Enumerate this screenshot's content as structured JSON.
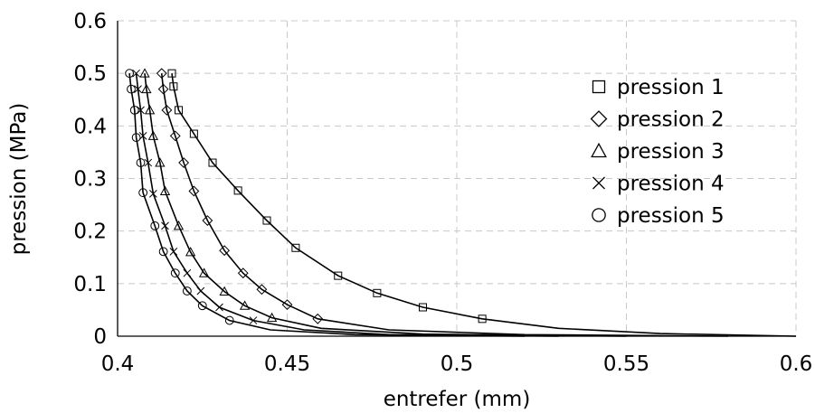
{
  "chart_data": {
    "type": "line",
    "title": "",
    "xlabel": "entrefer (mm)",
    "ylabel": "pression (MPa)",
    "xlim": [
      0.4,
      0.6
    ],
    "ylim": [
      0,
      0.6
    ],
    "xticks": [
      "0.4",
      "0.45",
      "0.5",
      "0.55",
      "0.6"
    ],
    "yticks": [
      "0",
      "0.1",
      "0.2",
      "0.3",
      "0.4",
      "0.5",
      "0.6"
    ],
    "grid": true,
    "legend_position": "right",
    "series": [
      {
        "name": "pression 1",
        "marker": "square",
        "x": [
          0.416,
          0.4165,
          0.418,
          0.4225,
          0.428,
          0.4355,
          0.444,
          0.4525,
          0.465,
          0.4765,
          0.49,
          0.5075,
          0.53,
          0.56,
          0.6
        ],
        "y": [
          0.5,
          0.475,
          0.43,
          0.385,
          0.33,
          0.277,
          0.22,
          0.168,
          0.115,
          0.082,
          0.055,
          0.033,
          0.015,
          0.005,
          0.0
        ]
      },
      {
        "name": "pression 2",
        "marker": "diamond",
        "x": [
          0.413,
          0.4135,
          0.4145,
          0.417,
          0.4195,
          0.4225,
          0.4265,
          0.4315,
          0.437,
          0.4425,
          0.45,
          0.459,
          0.48,
          0.52,
          0.58
        ],
        "y": [
          0.5,
          0.47,
          0.43,
          0.381,
          0.33,
          0.276,
          0.22,
          0.163,
          0.12,
          0.089,
          0.06,
          0.033,
          0.012,
          0.003,
          0.0
        ]
      },
      {
        "name": "pression 3",
        "marker": "triangle",
        "x": [
          0.408,
          0.4085,
          0.4095,
          0.4105,
          0.4125,
          0.414,
          0.418,
          0.4215,
          0.4255,
          0.4315,
          0.4375,
          0.4455,
          0.46,
          0.49,
          0.55
        ],
        "y": [
          0.5,
          0.47,
          0.43,
          0.381,
          0.33,
          0.276,
          0.21,
          0.16,
          0.12,
          0.085,
          0.058,
          0.035,
          0.015,
          0.004,
          0.0
        ]
      },
      {
        "name": "pression 4",
        "marker": "cross",
        "x": [
          0.4055,
          0.406,
          0.4068,
          0.4075,
          0.409,
          0.4105,
          0.414,
          0.4165,
          0.4205,
          0.4245,
          0.43,
          0.44,
          0.455,
          0.48,
          0.53
        ],
        "y": [
          0.5,
          0.47,
          0.43,
          0.381,
          0.33,
          0.271,
          0.21,
          0.161,
          0.12,
          0.086,
          0.055,
          0.03,
          0.012,
          0.003,
          0.0
        ]
      },
      {
        "name": "pression 5",
        "marker": "circle",
        "x": [
          0.4035,
          0.404,
          0.405,
          0.4055,
          0.4068,
          0.4075,
          0.411,
          0.4135,
          0.417,
          0.4205,
          0.425,
          0.433,
          0.445,
          0.47,
          0.52
        ],
        "y": [
          0.5,
          0.47,
          0.43,
          0.378,
          0.33,
          0.273,
          0.21,
          0.161,
          0.12,
          0.086,
          0.058,
          0.03,
          0.012,
          0.003,
          0.0
        ]
      }
    ]
  }
}
